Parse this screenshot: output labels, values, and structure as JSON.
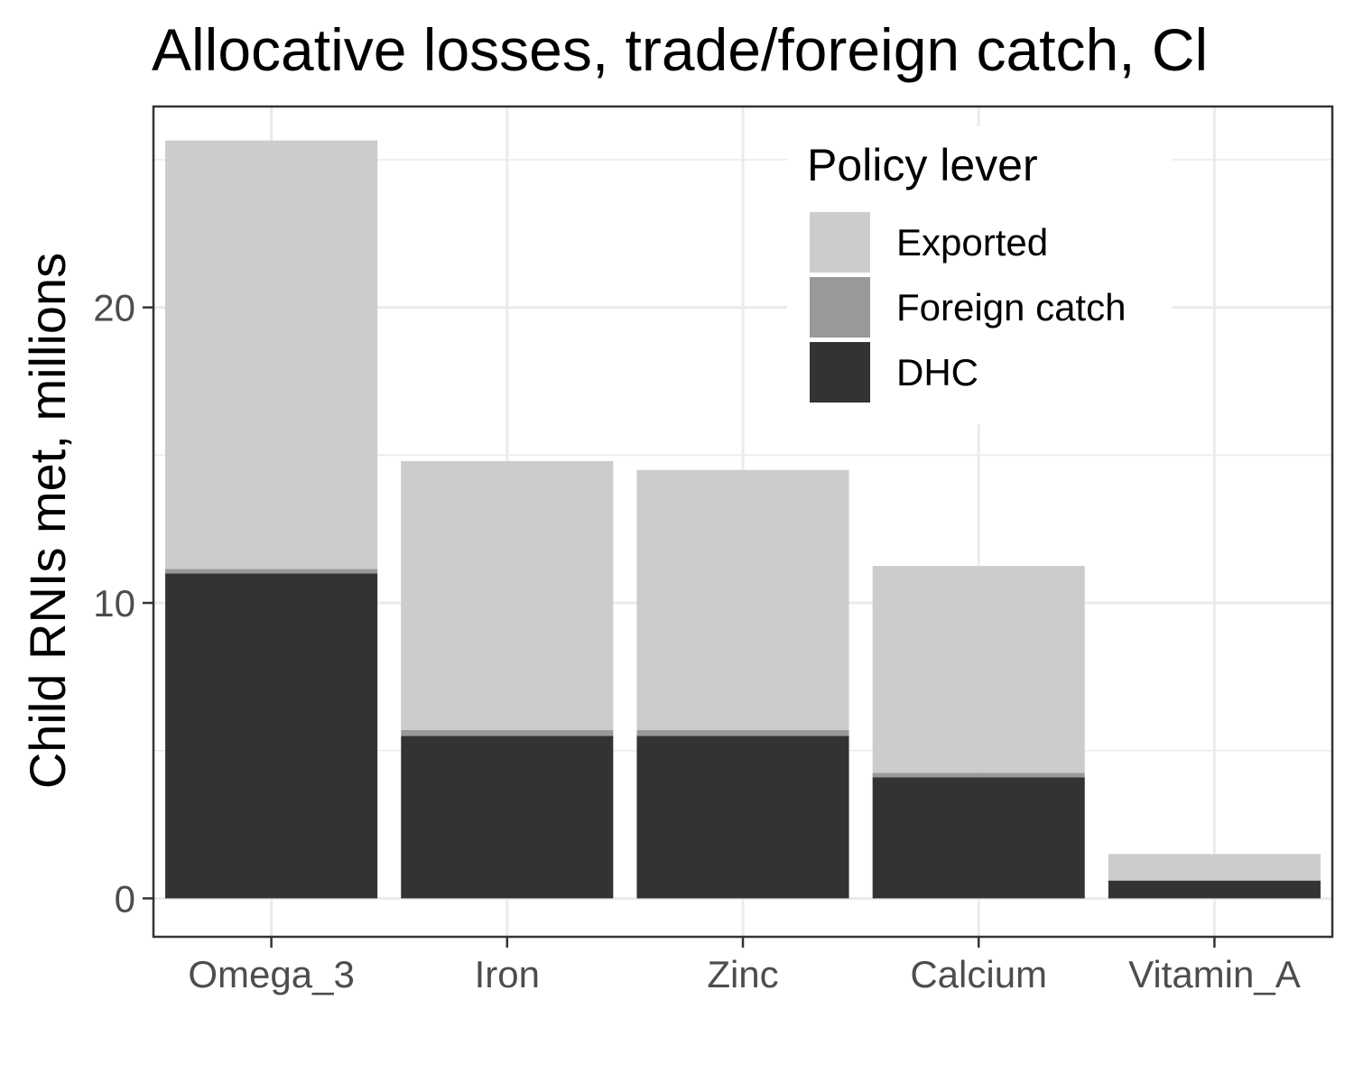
{
  "chart_data": {
    "type": "bar",
    "stacked": true,
    "title": "Allocative losses, trade/foreign catch, Cl",
    "xlabel": "",
    "ylabel": "Child RNIs met, millions",
    "categories": [
      "Omega_3",
      "Iron",
      "Zinc",
      "Calcium",
      "Vitamin_A"
    ],
    "series": [
      {
        "name": "DHC",
        "values": [
          11.0,
          5.5,
          5.5,
          4.1,
          0.6
        ],
        "color": "#333333"
      },
      {
        "name": "Foreign catch",
        "values": [
          0.15,
          0.2,
          0.2,
          0.15,
          0.02
        ],
        "color": "#999999"
      },
      {
        "name": "Exported",
        "values": [
          14.5,
          9.1,
          8.8,
          7.0,
          0.88
        ],
        "color": "#cccccc"
      }
    ],
    "ylim": [
      -1.3,
      26.8
    ],
    "yticks": [
      0,
      10,
      20
    ],
    "grid": true,
    "legend": {
      "title": "Policy lever",
      "position": "top-right",
      "entries": [
        "Exported",
        "Foreign catch",
        "DHC"
      ]
    }
  }
}
